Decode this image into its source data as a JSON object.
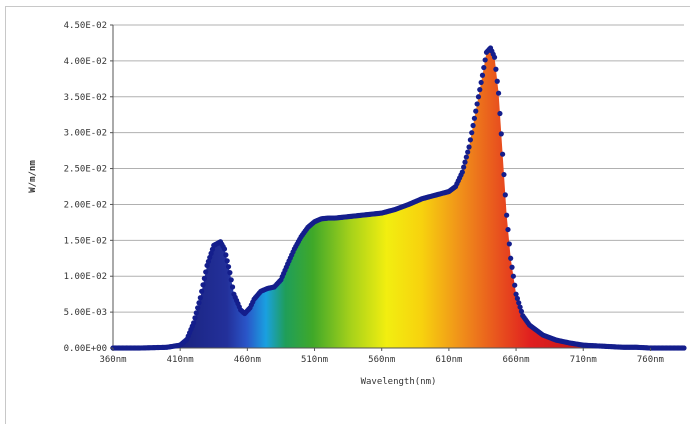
{
  "chart_data": {
    "type": "area",
    "title": "",
    "xlabel": "Wavelength(nm)",
    "ylabel": "W/m/nm",
    "x_ticks": [
      360,
      410,
      460,
      510,
      560,
      610,
      660,
      710,
      760
    ],
    "x_tick_labels": [
      "360nm",
      "410nm",
      "460nm",
      "510nm",
      "560nm",
      "610nm",
      "660nm",
      "710nm",
      "760nm"
    ],
    "xlim": [
      360,
      785
    ],
    "ylim": [
      0,
      0.045
    ],
    "y_ticks": [
      0,
      0.005,
      0.01,
      0.015,
      0.02,
      0.025,
      0.03,
      0.035,
      0.04,
      0.045
    ],
    "y_tick_labels": [
      "0.00E+00",
      "5.00E-03",
      "1.00E-02",
      "1.50E-02",
      "2.00E-02",
      "2.50E-02",
      "3.00E-02",
      "3.50E-02",
      "4.00E-02",
      "4.50E-02"
    ],
    "grid": true,
    "fill": "visible-spectrum gradient",
    "marker_color": "#141e8c",
    "series": [
      {
        "x": [
          360,
          380,
          400,
          410,
          415,
          420,
          425,
          430,
          435,
          440,
          443,
          447,
          450,
          455,
          458,
          462,
          465,
          470,
          475,
          480,
          485,
          490,
          495,
          500,
          505,
          510,
          515,
          520,
          525,
          530,
          540,
          550,
          560,
          570,
          580,
          590,
          600,
          610,
          615,
          620,
          625,
          630,
          635,
          638,
          641,
          644,
          647,
          650,
          653,
          656,
          660,
          665,
          670,
          680,
          690,
          700,
          710,
          720,
          730,
          740,
          750,
          760,
          770,
          785
        ],
        "y": [
          0,
          0,
          0.0001,
          0.0004,
          0.0012,
          0.0035,
          0.007,
          0.0115,
          0.0143,
          0.0148,
          0.0138,
          0.0105,
          0.0075,
          0.0053,
          0.0048,
          0.0056,
          0.0068,
          0.0079,
          0.0083,
          0.0085,
          0.0095,
          0.0117,
          0.0138,
          0.0155,
          0.0168,
          0.0176,
          0.018,
          0.0181,
          0.0181,
          0.0182,
          0.0184,
          0.0186,
          0.0188,
          0.0193,
          0.02,
          0.0208,
          0.0213,
          0.0218,
          0.0225,
          0.0245,
          0.028,
          0.033,
          0.038,
          0.0412,
          0.0418,
          0.0405,
          0.0355,
          0.027,
          0.0185,
          0.0125,
          0.0075,
          0.0045,
          0.0032,
          0.0018,
          0.0011,
          0.0007,
          0.0004,
          0.0003,
          0.0002,
          0.0001,
          0.0001,
          0,
          0,
          0
        ]
      }
    ]
  }
}
